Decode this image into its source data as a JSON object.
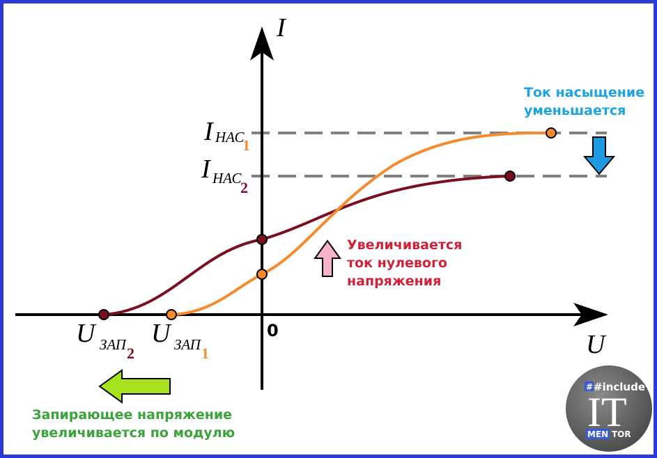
{
  "axes": {
    "y_label": "I",
    "x_label": "U",
    "origin_label": "0"
  },
  "labels": {
    "i_sat_1": {
      "main": "I",
      "sub": "НАС",
      "index": "1"
    },
    "i_sat_2": {
      "main": "I",
      "sub": "НАС",
      "index": "2"
    },
    "u_cut_1": {
      "main": "U",
      "sub": "ЗАП",
      "index": "1"
    },
    "u_cut_2": {
      "main": "U",
      "sub": "ЗАП",
      "index": "2"
    }
  },
  "notes": {
    "saturation": [
      "Ток насыщение",
      "уменьшается"
    ],
    "zero_voltage": [
      "Увеличивается",
      "ток нулевого",
      "напряжения"
    ],
    "cutoff": [
      "Запирающее напряжение",
      "увеличивается по модулю"
    ]
  },
  "logo": {
    "top": "#include",
    "middle": "IT",
    "bottom_left": "MEN",
    "bottom_right": "TOR"
  },
  "colors": {
    "border": "#2a3bd6",
    "curve_1": "#f58a2f",
    "curve_2": "#7a0f22",
    "dashes": "#808080",
    "saturation_note": "#1ea4e0",
    "zero_voltage_note": "#d0213b",
    "cutoff_note": "#3aa33a",
    "arrow_down": "#1e9be0",
    "arrow_up": "#f7b3c8",
    "arrow_left": "#a6e21d"
  }
}
